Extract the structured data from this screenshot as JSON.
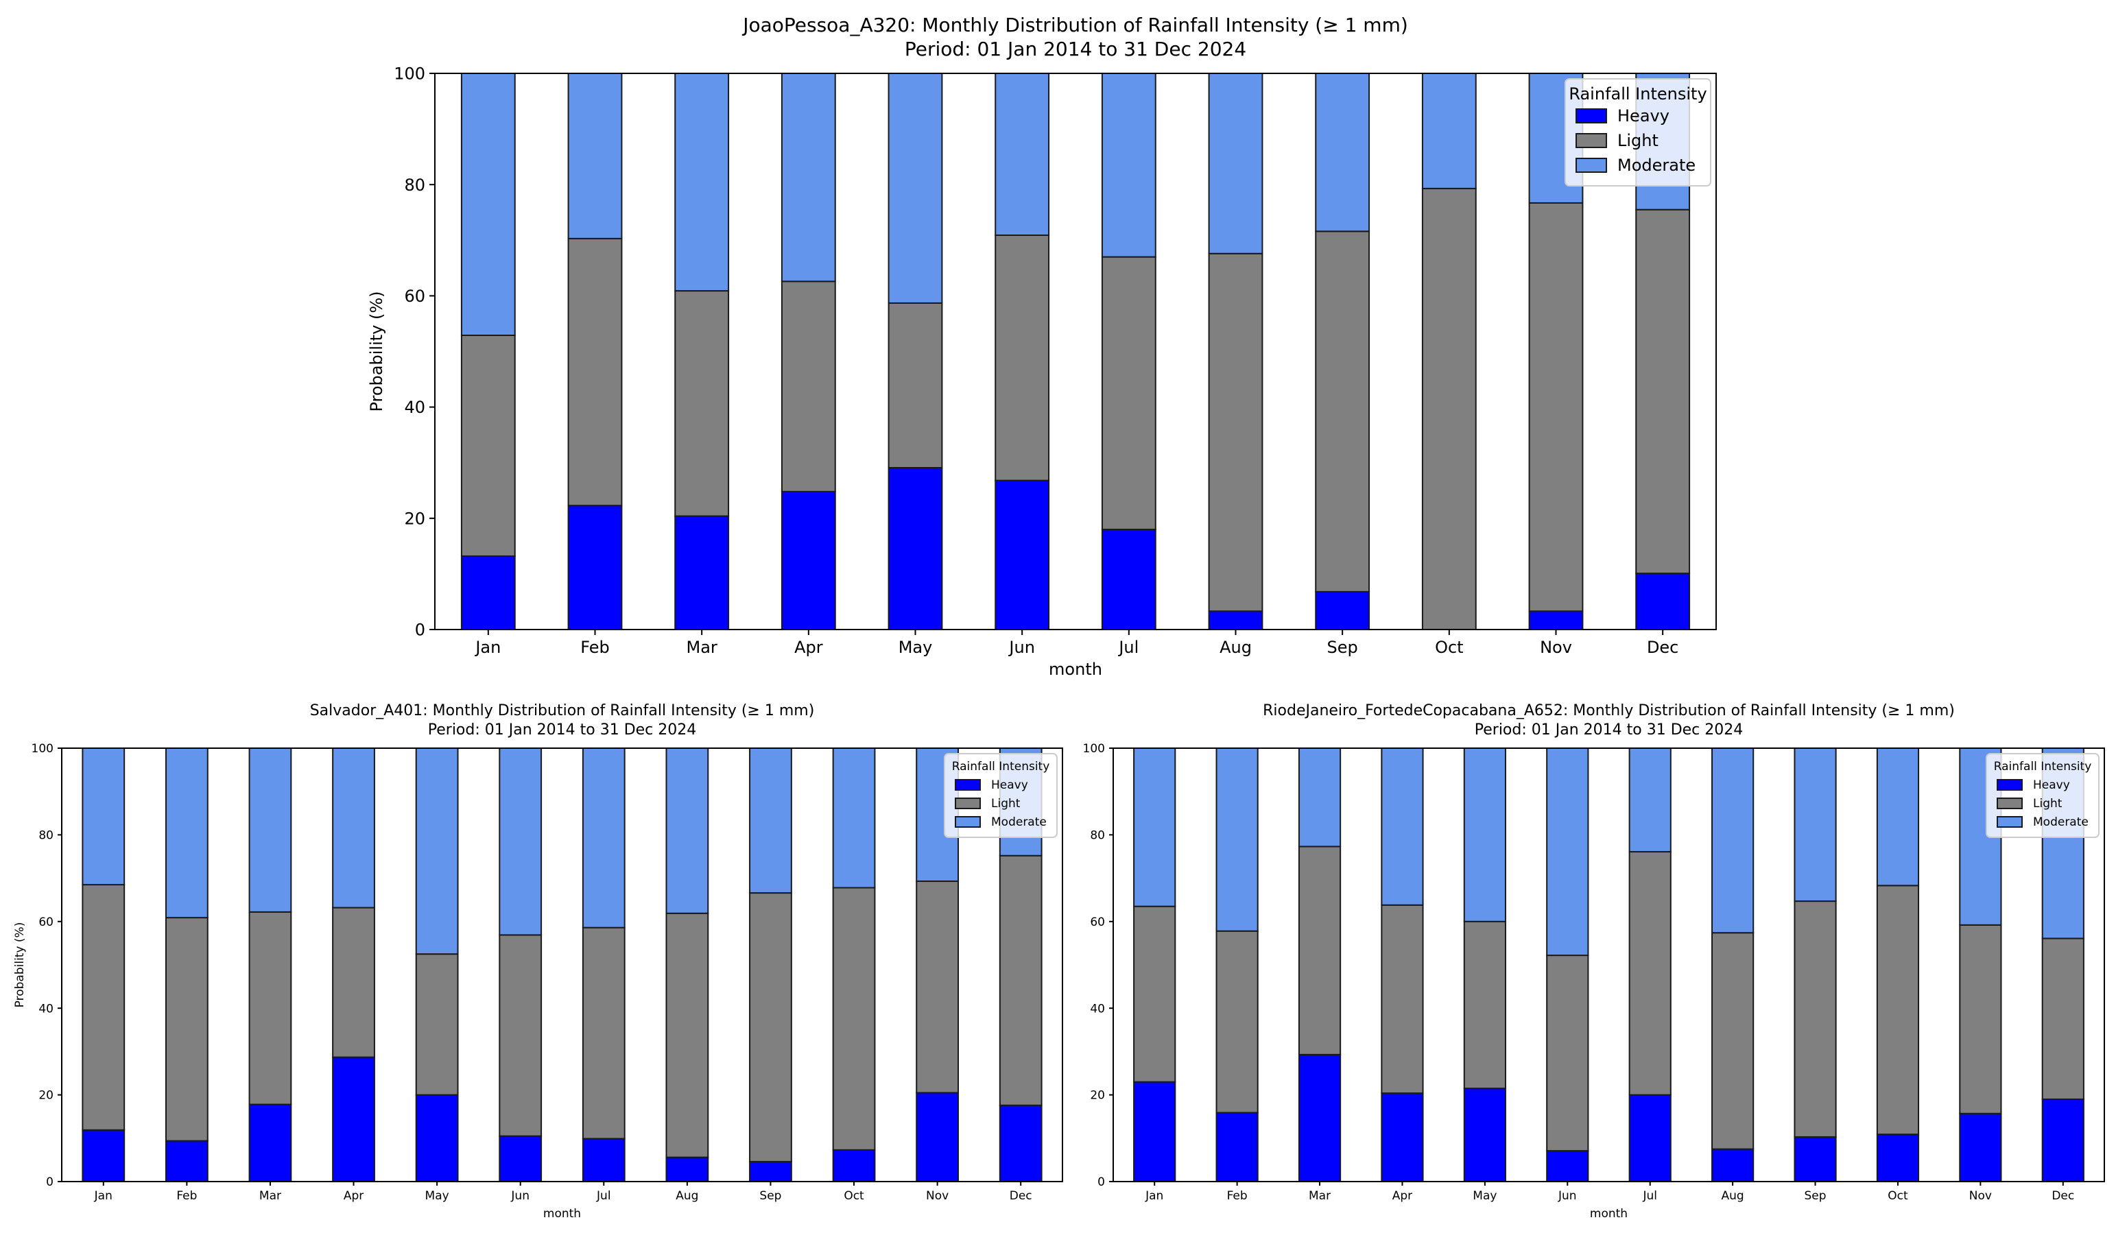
{
  "colors": {
    "heavy": "#0000ff",
    "light": "#808080",
    "moderate": "#6495ed",
    "edge": "#1a1a1a"
  },
  "chart_data": [
    {
      "type": "bar",
      "stacked": true,
      "title": "JoaoPessoa_A320: Monthly Distribution of Rainfall Intensity (≥ 1 mm)",
      "subtitle": "Period: 01 Jan 2014 to 31 Dec 2024",
      "xlabel": "month",
      "ylabel": "Probability (%)",
      "ylim": [
        0,
        100
      ],
      "yticks": [
        0,
        20,
        40,
        60,
        80,
        100
      ],
      "legend_title": "Rainfall Intensity",
      "legend_position": "top-right",
      "categories": [
        "Jan",
        "Feb",
        "Mar",
        "Apr",
        "May",
        "Jun",
        "Jul",
        "Aug",
        "Sep",
        "Oct",
        "Nov",
        "Dec"
      ],
      "series": [
        {
          "name": "Heavy",
          "values": [
            13.2,
            22.3,
            20.4,
            24.8,
            29.1,
            26.8,
            18.0,
            3.3,
            6.8,
            0,
            3.3,
            10.1
          ]
        },
        {
          "name": "Light",
          "values": [
            39.7,
            48.0,
            40.5,
            37.8,
            29.6,
            44.1,
            49.0,
            64.3,
            64.8,
            79.3,
            73.4,
            65.4
          ]
        },
        {
          "name": "Moderate",
          "values": [
            47.1,
            29.7,
            39.1,
            37.4,
            41.3,
            29.1,
            33.0,
            32.4,
            28.4,
            20.7,
            23.3,
            24.5
          ]
        }
      ]
    },
    {
      "type": "bar",
      "stacked": true,
      "title": "Salvador_A401: Monthly Distribution of Rainfall Intensity (≥ 1 mm)",
      "subtitle": "Period: 01 Jan 2014 to 31 Dec 2024",
      "xlabel": "month",
      "ylabel": "Probability (%)",
      "ylim": [
        0,
        100
      ],
      "yticks": [
        0,
        20,
        40,
        60,
        80,
        100
      ],
      "legend_title": "Rainfall Intensity",
      "legend_position": "top-right",
      "categories": [
        "Jan",
        "Feb",
        "Mar",
        "Apr",
        "May",
        "Jun",
        "Jul",
        "Aug",
        "Sep",
        "Oct",
        "Nov",
        "Dec"
      ],
      "series": [
        {
          "name": "Heavy",
          "values": [
            11.9,
            9.4,
            17.8,
            28.7,
            20.0,
            10.5,
            9.9,
            5.6,
            4.6,
            7.3,
            20.5,
            17.6
          ]
        },
        {
          "name": "Light",
          "values": [
            56.6,
            51.5,
            44.4,
            34.5,
            32.5,
            46.4,
            48.7,
            56.3,
            62.0,
            60.5,
            48.8,
            57.6
          ]
        },
        {
          "name": "Moderate",
          "values": [
            31.5,
            39.1,
            37.8,
            36.8,
            47.5,
            43.1,
            41.4,
            38.1,
            33.4,
            32.2,
            30.7,
            24.8
          ]
        }
      ]
    },
    {
      "type": "bar",
      "stacked": true,
      "title": "RiodeJaneiro_FortedeCopacabana_A652: Monthly Distribution of Rainfall Intensity (≥ 1 mm)",
      "subtitle": "Period: 01 Jan 2014 to 31 Dec 2024",
      "xlabel": "month",
      "ylabel": "",
      "ylim": [
        0,
        100
      ],
      "yticks": [
        0,
        20,
        40,
        60,
        80,
        100
      ],
      "legend_title": "Rainfall Intensity",
      "legend_position": "top-right",
      "categories": [
        "Jan",
        "Feb",
        "Mar",
        "Apr",
        "May",
        "Jun",
        "Jul",
        "Aug",
        "Sep",
        "Oct",
        "Nov",
        "Dec"
      ],
      "series": [
        {
          "name": "Heavy",
          "values": [
            23.0,
            15.9,
            29.3,
            20.4,
            21.5,
            7.1,
            20.0,
            7.5,
            10.3,
            10.9,
            15.7,
            19.0
          ]
        },
        {
          "name": "Light",
          "values": [
            40.5,
            41.9,
            48.0,
            43.4,
            38.5,
            45.1,
            56.1,
            49.9,
            54.4,
            57.4,
            43.5,
            37.1
          ]
        },
        {
          "name": "Moderate",
          "values": [
            36.5,
            42.2,
            22.7,
            36.2,
            40.0,
            47.8,
            23.9,
            42.6,
            35.3,
            31.7,
            40.8,
            43.9
          ]
        }
      ]
    }
  ]
}
